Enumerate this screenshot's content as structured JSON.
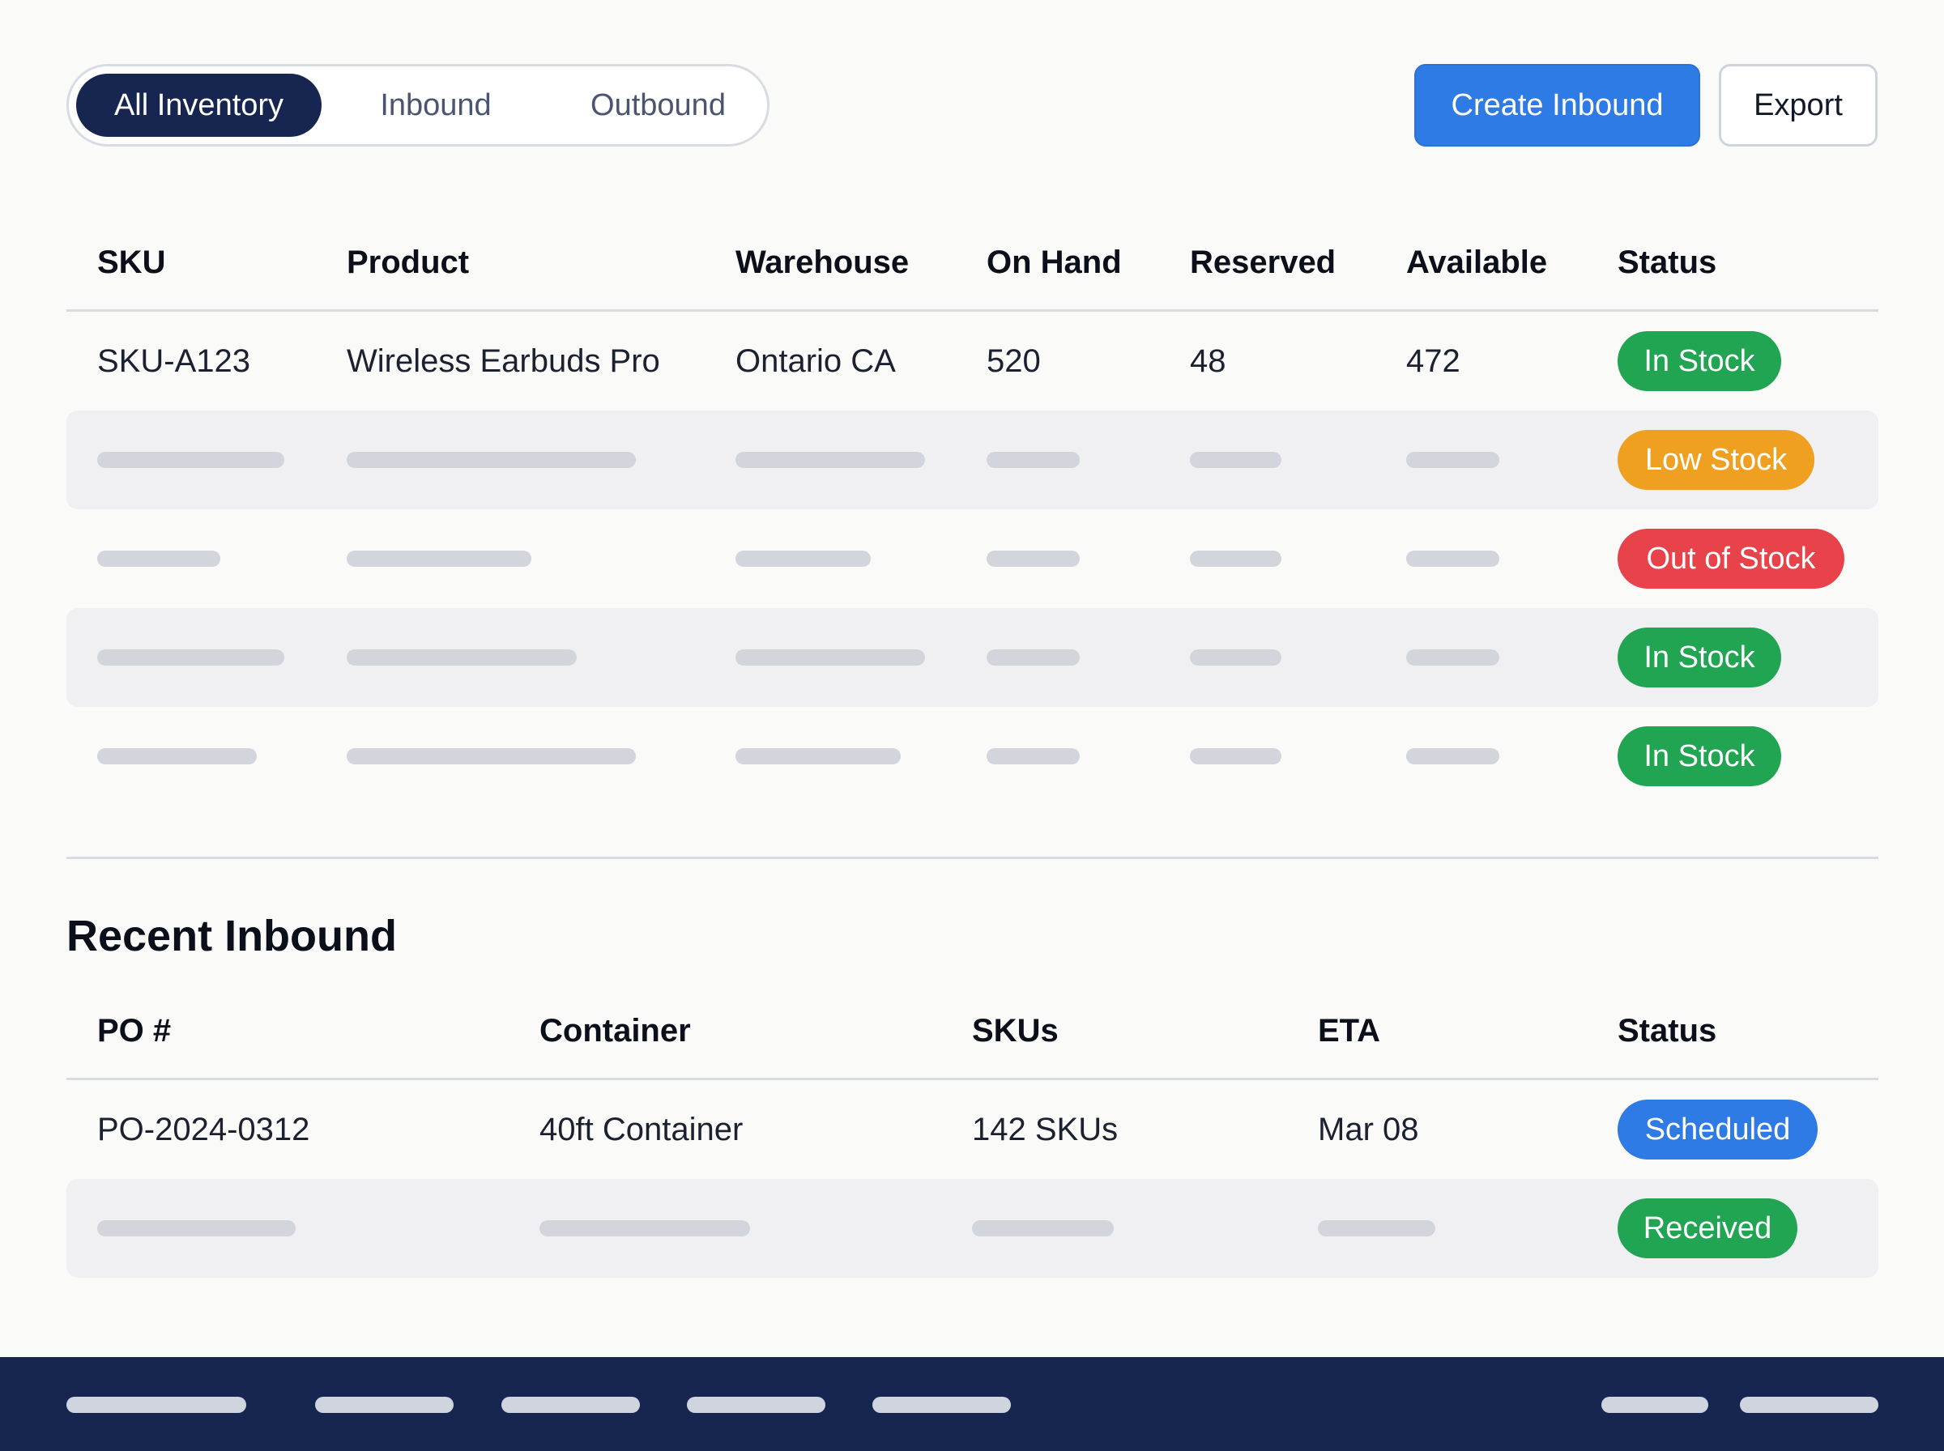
{
  "tabs": {
    "all_inventory": "All Inventory",
    "inbound": "Inbound",
    "outbound": "Outbound",
    "active": "all_inventory"
  },
  "actions": {
    "create_inbound": "Create Inbound",
    "export": "Export"
  },
  "inventory_table": {
    "headers": {
      "sku": "SKU",
      "product": "Product",
      "warehouse": "Warehouse",
      "on_hand": "On Hand",
      "reserved": "Reserved",
      "available": "Available",
      "status": "Status"
    },
    "rows": [
      {
        "sku": "SKU-A123",
        "product": "Wireless Earbuds Pro",
        "warehouse": "Ontario CA",
        "on_hand": "520",
        "reserved": "48",
        "available": "472",
        "status": "In Stock"
      },
      {
        "status": "Low Stock"
      },
      {
        "status": "Out of Stock"
      },
      {
        "status": "In Stock"
      },
      {
        "status": "In Stock"
      }
    ]
  },
  "recent_inbound": {
    "title": "Recent Inbound",
    "headers": {
      "po": "PO #",
      "container": "Container",
      "skus": "SKUs",
      "eta": "ETA",
      "status": "Status"
    },
    "rows": [
      {
        "po": "PO-2024-0312",
        "container": "40ft Container",
        "skus": "142 SKUs",
        "eta": "Mar 08",
        "status": "Scheduled"
      },
      {
        "status": "Received"
      }
    ]
  },
  "colors": {
    "navy": "#162650",
    "primary_blue": "#2f7be6",
    "status_green": "#22a552",
    "status_orange": "#f0a020",
    "status_red": "#e8424a"
  }
}
